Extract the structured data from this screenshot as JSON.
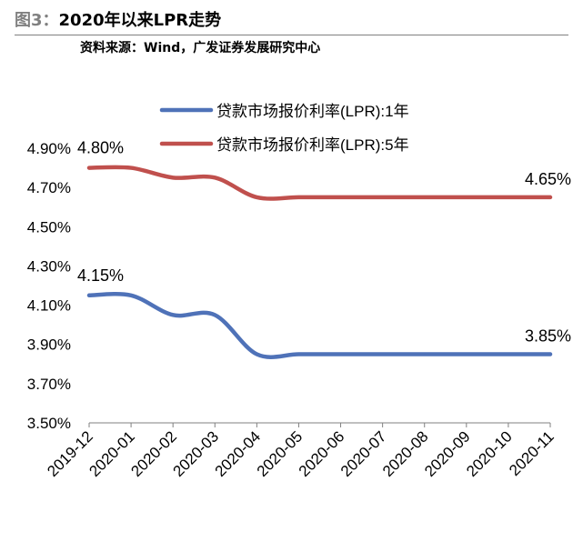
{
  "figure": {
    "label": "图3：",
    "title": "2020年以来LPR走势",
    "source": "资料来源：Wind，广发证券发展研究中心"
  },
  "chart_data": {
    "type": "line",
    "categories": [
      "2019-12",
      "2020-01",
      "2020-02",
      "2020-03",
      "2020-04",
      "2020-05",
      "2020-06",
      "2020-07",
      "2020-08",
      "2020-09",
      "2020-10",
      "2020-11"
    ],
    "ylim": [
      3.5,
      4.9
    ],
    "yticks": [
      "3.50%",
      "3.70%",
      "3.90%",
      "4.10%",
      "4.30%",
      "4.50%",
      "4.70%",
      "4.90%"
    ],
    "series": [
      {
        "name": "贷款市场报价利率(LPR):1年",
        "color": "#4f72b8",
        "values": [
          4.15,
          4.15,
          4.05,
          4.05,
          3.85,
          3.85,
          3.85,
          3.85,
          3.85,
          3.85,
          3.85,
          3.85
        ],
        "start_label": "4.15%",
        "end_label": "3.85%"
      },
      {
        "name": "贷款市场报价利率(LPR):5年",
        "color": "#c0504d",
        "values": [
          4.8,
          4.8,
          4.75,
          4.75,
          4.65,
          4.65,
          4.65,
          4.65,
          4.65,
          4.65,
          4.65,
          4.65
        ],
        "start_label": "4.80%",
        "end_label": "4.65%"
      }
    ]
  }
}
